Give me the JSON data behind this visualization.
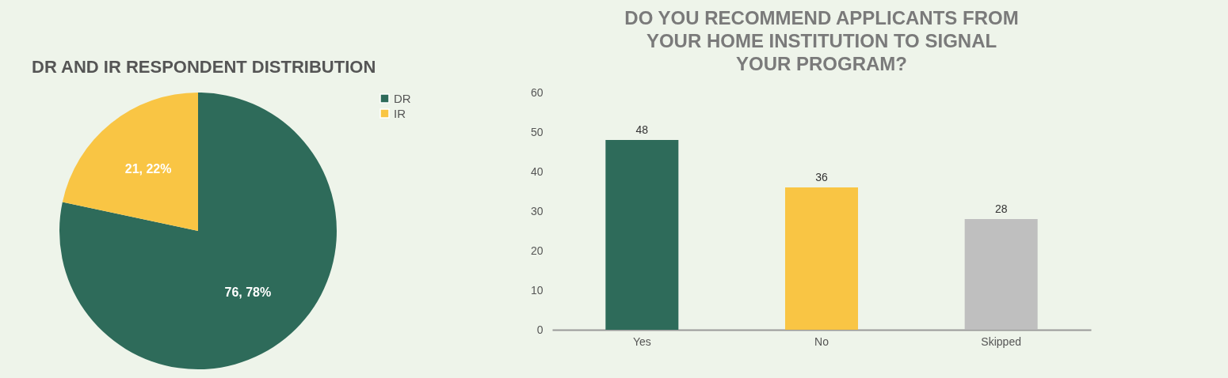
{
  "chart_data": [
    {
      "type": "pie",
      "title": "DR AND IR RESPONDENT DISTRIBUTION",
      "categories": [
        "DR",
        "IR"
      ],
      "values": [
        76,
        21
      ],
      "colors": [
        "#2e6b5a",
        "#f9c544"
      ],
      "value_labels": [
        "76, 78%",
        "21, 22%"
      ],
      "legend": "right"
    },
    {
      "type": "bar",
      "title": "DO YOU RECOMMEND APPLICANTS FROM YOUR HOME INSTITUTION TO SIGNAL YOUR PROGRAM?",
      "categories": [
        "Yes",
        "No",
        "Skipped"
      ],
      "values": [
        48,
        36,
        28
      ],
      "colors": [
        "#2e6b5a",
        "#f9c544",
        "#bfbfbf"
      ],
      "ylim": [
        0,
        60
      ],
      "yticks": [
        0,
        10,
        20,
        30,
        40,
        50,
        60
      ],
      "data_labels": true,
      "grid": false
    }
  ]
}
